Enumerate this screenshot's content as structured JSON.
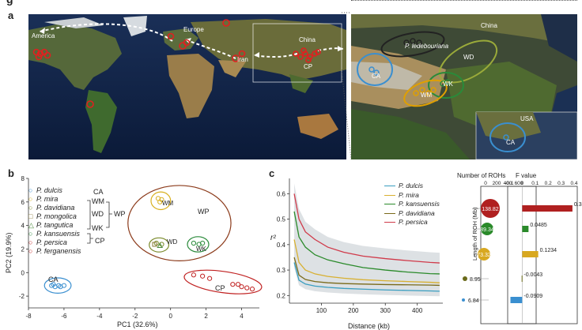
{
  "figure": {
    "top_letter": "g",
    "panel_a": "a",
    "panel_b": "b",
    "panel_c": "c"
  },
  "map_world": {
    "labels": {
      "america": "America",
      "europe": "Europe",
      "iran": "Iran",
      "china": "China",
      "cp": "CP"
    }
  },
  "map_china": {
    "labels": {
      "china": "China",
      "ledebouriana": "P. ledebouriana",
      "ca": "CA",
      "wm": "WM",
      "wk": "WK",
      "wd": "WD",
      "usa": "USA",
      "ca_usa": "CA"
    }
  },
  "pca": {
    "xlabel": "PC1 (32.6%)",
    "ylabel": "PC2 (19.9%)",
    "xticks": [
      "-8",
      "-6",
      "-4",
      "-2",
      "0",
      "2",
      "4"
    ],
    "yticks": [
      "-2",
      "0",
      "2",
      "4",
      "6",
      "8"
    ],
    "legend": [
      {
        "species": "P. dulcis",
        "symbol": "circle",
        "color": "#3a8fd0"
      },
      {
        "species": "P. mira",
        "symbol": "circle",
        "color": "#d8b020"
      },
      {
        "species": "P. davidiana",
        "symbol": "circle",
        "color": "#7a8a2a"
      },
      {
        "species": "P. mongolica",
        "symbol": "square",
        "color": "#8a7a3a"
      },
      {
        "species": "P. tangutica",
        "symbol": "triangle",
        "color": "#4a8a3a"
      },
      {
        "species": "P. kansuensis",
        "symbol": "circle",
        "color": "#2a8a3a"
      },
      {
        "species": "P. persica",
        "symbol": "circle",
        "color": "#c02020"
      },
      {
        "species": "P. ferganensis",
        "symbol": "circle",
        "color": "#c02020"
      }
    ],
    "groups": {
      "ca": "CA",
      "wm": "WM",
      "wd": "WD",
      "wp": "WP",
      "wk": "WK",
      "cp": "CP"
    },
    "cluster_labels": {
      "ca": "CA",
      "wm": "WM",
      "wp": "WP",
      "wd": "WD",
      "wk": "WK",
      "cp": "CP"
    }
  },
  "ld": {
    "ylabel": "r²",
    "xlabel": "Distance (kb)",
    "yticks": [
      "0.2",
      "0.3",
      "0.4",
      "0.5",
      "0.6"
    ],
    "xticks": [
      "100",
      "200",
      "300",
      "400"
    ],
    "legend": [
      "P. dulcis",
      "P. mira",
      "P. kansuensis",
      "P. davidiana",
      "P. persica"
    ]
  },
  "roh": {
    "title": "Number of ROHs",
    "ticks": [
      "0",
      "200",
      "400",
      "600"
    ],
    "ylabel": "Length of ROH (Mb)",
    "values": [
      "138.82",
      "89.34",
      "73.32",
      "8.95",
      "6.84"
    ]
  },
  "fvalue": {
    "title": "F value",
    "ticks": [
      "-0.1",
      "0",
      "0.1",
      "0.2",
      "0.3",
      "0.4"
    ],
    "values": [
      "0.3873",
      "0.0485",
      "0.1234",
      "-0.0043",
      "-0.0909"
    ]
  },
  "chart_data": [
    {
      "type": "scatter",
      "xlabel": "PC1 (32.6%)",
      "ylabel": "PC2 (19.9%)",
      "xlim": [
        -8,
        5
      ],
      "ylim": [
        -3,
        8
      ],
      "series": [
        {
          "name": "P. dulcis",
          "points": [
            [
              -6.7,
              -1.1
            ],
            [
              -6.5,
              -1.2
            ],
            [
              -6.3,
              -1.1
            ],
            [
              -6.2,
              -1.2
            ],
            [
              -6.0,
              -1.1
            ],
            [
              -6.6,
              -1.0
            ]
          ]
        },
        {
          "name": "P. mira",
          "points": [
            [
              -0.7,
              6.3
            ],
            [
              -0.6,
              6.0
            ],
            [
              -0.5,
              6.2
            ]
          ]
        },
        {
          "name": "P. davidiana",
          "points": [
            [
              -0.8,
              2.5
            ],
            [
              -0.5,
              2.4
            ]
          ]
        },
        {
          "name": "P. mongolica",
          "points": [
            [
              -0.9,
              2.4
            ]
          ]
        },
        {
          "name": "P. tangutica",
          "points": [
            [
              -0.6,
              2.3
            ]
          ]
        },
        {
          "name": "P. kansuensis",
          "points": [
            [
              1.3,
              2.5
            ],
            [
              1.6,
              2.4
            ],
            [
              1.8,
              2.5
            ]
          ]
        },
        {
          "name": "P. persica",
          "points": [
            [
              1.3,
              -0.2
            ],
            [
              1.8,
              -0.3
            ],
            [
              2.2,
              -0.5
            ],
            [
              3.8,
              -1.0
            ],
            [
              4.0,
              -1.2
            ],
            [
              4.3,
              -1.3
            ],
            [
              4.6,
              -1.4
            ]
          ]
        },
        {
          "name": "P. ferganensis",
          "points": [
            [
              3.5,
              -1.0
            ]
          ]
        }
      ]
    },
    {
      "type": "line",
      "xlabel": "Distance (kb)",
      "ylabel": "r²",
      "xlim": [
        0,
        480
      ],
      "ylim": [
        0.17,
        0.66
      ],
      "x": [
        15,
        30,
        50,
        80,
        120,
        170,
        230,
        300,
        370,
        440,
        470
      ],
      "series": [
        {
          "name": "P. dulcis",
          "values": [
            0.33,
            0.26,
            0.245,
            0.237,
            0.232,
            0.228,
            0.225,
            0.222,
            0.22,
            0.218,
            0.217
          ]
        },
        {
          "name": "P. mira",
          "values": [
            0.42,
            0.33,
            0.3,
            0.285,
            0.275,
            0.268,
            0.262,
            0.258,
            0.255,
            0.252,
            0.25
          ]
        },
        {
          "name": "P. kansuensis",
          "values": [
            0.53,
            0.43,
            0.39,
            0.36,
            0.34,
            0.325,
            0.31,
            0.3,
            0.292,
            0.286,
            0.285
          ]
        },
        {
          "name": "P. davidiana",
          "values": [
            0.35,
            0.28,
            0.263,
            0.255,
            0.25,
            0.247,
            0.245,
            0.243,
            0.242,
            0.241,
            0.24
          ]
        },
        {
          "name": "P. persica",
          "values": [
            0.6,
            0.5,
            0.45,
            0.42,
            0.39,
            0.37,
            0.355,
            0.345,
            0.337,
            0.33,
            0.328
          ]
        }
      ]
    },
    {
      "type": "bar",
      "title": "F value",
      "categories": [
        "P. persica",
        "P. kansuensis",
        "P. mira",
        "P. davidiana",
        "P. dulcis"
      ],
      "values": [
        0.3873,
        0.0485,
        0.1234,
        -0.0043,
        -0.0909
      ],
      "xlim": [
        -0.1,
        0.4
      ]
    }
  ]
}
